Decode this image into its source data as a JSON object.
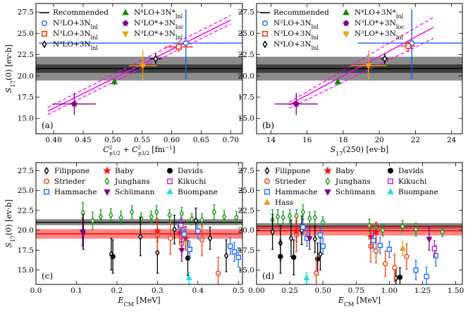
{
  "colors": {
    "band_a": "#000000",
    "band_c_dark": "#222222",
    "band_c_red": "#ff2020",
    "fit_line": "#ff00ff",
    "n2lo": "#1e5cff",
    "n3lo": "#ff2a00",
    "n4lo": "#000000",
    "n4lo_star": "#0f8a0f",
    "n3lo_loc": "#8b008b",
    "n3lo_star_lnl": "#f2a000",
    "filippone": "#000000",
    "strieder": "#ff3a00",
    "hammache": "#1e6cff",
    "baby": "#ff1010",
    "junghans": "#179b17",
    "schumann": "#800080",
    "davids": "#000000",
    "kikuchi": "#c020c0",
    "buompane": "#20e0e0",
    "hass": "#e0a020"
  },
  "ylabel_sym": "S",
  "ylabel_sub": "17",
  "ylabel_rest": "(0) [ev·b]",
  "chart_data": [
    {
      "panel": "(a)",
      "type": "scatter",
      "xlabel": "C²p1/2 + C²p3/2 [fm⁻¹]",
      "xlim": [
        0.37,
        0.72
      ],
      "ylim": [
        13.2,
        28.5
      ],
      "xticks": [
        0.4,
        0.45,
        0.5,
        0.55,
        0.6,
        0.65,
        0.7
      ],
      "yticks": [
        15.0,
        17.5,
        20.0,
        22.5,
        25.0,
        27.5
      ],
      "band": {
        "center": 20.85,
        "inner": [
          20.35,
          21.35
        ],
        "outer": [
          19.45,
          22.25
        ]
      },
      "fit_line": {
        "x": [
          0.39,
          0.7
        ],
        "y": [
          15.85,
          26.55
        ],
        "upper_y": [
          16.3,
          27.1
        ],
        "lower_y": [
          15.45,
          26.1
        ]
      },
      "legend": [
        "Recommended",
        "N²LO+3N_lnl",
        "N³LO+3N_lnl",
        "N⁴LO+3N_lnl",
        "N⁴LO+3N*_lnl",
        "N³LO*+3N_loc",
        "N³LO*+3N_lnl"
      ],
      "points": [
        {
          "series": "N²LO+3N_lnl",
          "x": 0.624,
          "y": 23.85,
          "xerr": [
            0.375,
            0.72
          ],
          "yerr": [
            19.6,
            27.8
          ]
        },
        {
          "series": "N³LO+3N_lnl",
          "x": 0.612,
          "y": 23.4,
          "xerr": [
            0.588,
            0.636
          ],
          "yerr": [
            22.8,
            24.0
          ]
        },
        {
          "series": "N⁴LO+3N_lnl",
          "x": 0.573,
          "y": 22.0,
          "xerr": [
            0.563,
            0.583
          ],
          "yerr": [
            21.4,
            22.6
          ]
        },
        {
          "series": "N⁴LO+3N*_lnl",
          "x": 0.503,
          "y": 19.3,
          "xerr": [
            0.5,
            0.506
          ],
          "yerr": [
            18.9,
            19.7
          ]
        },
        {
          "series": "N³LO*+3N_loc",
          "x": 0.435,
          "y": 16.7,
          "xerr": [
            0.398,
            0.472
          ],
          "yerr": [
            15.4,
            18.0
          ]
        },
        {
          "series": "N³LO*+3N_lnl",
          "x": 0.551,
          "y": 21.2,
          "xerr": [
            0.528,
            0.575
          ],
          "yerr": [
            19.4,
            23.0
          ]
        }
      ]
    },
    {
      "panel": "(b)",
      "type": "scatter",
      "xlabel": "S17(250) [ev·b]",
      "xlim": [
        13.2,
        24.6
      ],
      "ylim": [
        13.2,
        28.5
      ],
      "xticks": [
        14,
        16,
        18,
        20,
        22,
        24
      ],
      "yticks": [
        15.0,
        17.5,
        20.0,
        22.5,
        25.0,
        27.5
      ],
      "band": {
        "center": 20.85,
        "inner": [
          20.35,
          21.35
        ],
        "outer": [
          19.45,
          22.25
        ]
      },
      "fit_line": {
        "x": [
          15.0,
          23.0
        ],
        "y": [
          16.6,
          25.7
        ],
        "upper_y": [
          16.9,
          26.9
        ],
        "lower_y": [
          16.2,
          24.4
        ]
      },
      "legend": [
        "Recommended",
        "N²LO+3N_lnl",
        "N³LO+3N_lnl",
        "N⁴LO+3N_lnl",
        "N⁴LO+3N*_lnl",
        "N³LO*+3N_loc",
        "N³LO*+3N_lnl"
      ],
      "points": [
        {
          "series": "N²LO+3N_lnl",
          "x": 21.8,
          "y": 23.85,
          "xerr": [
            18.8,
            24.6
          ],
          "yerr": [
            19.6,
            27.8
          ]
        },
        {
          "series": "N³LO+3N_lnl",
          "x": 21.6,
          "y": 23.5,
          "xerr": [
            21.2,
            22.0
          ],
          "yerr": [
            22.8,
            24.1
          ]
        },
        {
          "series": "N⁴LO+3N_lnl",
          "x": 20.3,
          "y": 22.0,
          "xerr": [
            20.1,
            20.5
          ],
          "yerr": [
            21.4,
            22.6
          ]
        },
        {
          "series": "N⁴LO+3N*_lnl",
          "x": 17.7,
          "y": 19.3,
          "xerr": [
            17.6,
            17.8
          ],
          "yerr": [
            18.9,
            19.7
          ]
        },
        {
          "series": "N³LO*+3N_loc",
          "x": 15.4,
          "y": 16.7,
          "xerr": [
            14.2,
            16.6
          ],
          "yerr": [
            15.4,
            18.0
          ]
        },
        {
          "series": "N³LO*+3N_lnl",
          "x": 19.4,
          "y": 21.2,
          "xerr": [
            18.4,
            20.4
          ],
          "yerr": [
            19.4,
            23.0
          ]
        }
      ]
    },
    {
      "panel": "(c)",
      "type": "scatter",
      "xlabel": "E_CM [MeV]",
      "xlim": [
        0.0,
        0.51
      ],
      "ylim": [
        13.2,
        28.5
      ],
      "xticks": [
        0.0,
        0.1,
        0.2,
        0.3,
        0.4,
        0.5
      ],
      "yticks": [
        15.0,
        17.5,
        20.0,
        22.5,
        25.0,
        27.5
      ],
      "band_dark": {
        "center": 21.0,
        "range": [
          20.65,
          21.4
        ]
      },
      "band_red": {
        "center": 19.55,
        "range": [
          18.95,
          20.15
        ]
      },
      "legend": [
        "Filippone",
        "Strieder",
        "Hammache",
        "Baby",
        "Junghans",
        "Schümann",
        "Davids",
        "Kikuchi",
        "Buompane"
      ],
      "points": [
        {
          "series": "Junghans",
          "x": 0.116,
          "y": 22.2,
          "err": 1.3
        },
        {
          "series": "Junghans",
          "x": 0.14,
          "y": 21.2,
          "err": 1.1
        },
        {
          "series": "Junghans",
          "x": 0.16,
          "y": 21.7,
          "err": 0.9
        },
        {
          "series": "Junghans",
          "x": 0.185,
          "y": 21.9,
          "err": 0.8
        },
        {
          "series": "Junghans",
          "x": 0.21,
          "y": 21.6,
          "err": 0.8
        },
        {
          "series": "Junghans",
          "x": 0.237,
          "y": 22.3,
          "err": 0.8
        },
        {
          "series": "Junghans",
          "x": 0.26,
          "y": 21.5,
          "err": 0.7
        },
        {
          "series": "Junghans",
          "x": 0.285,
          "y": 21.7,
          "err": 0.7
        },
        {
          "series": "Junghans",
          "x": 0.298,
          "y": 22.3,
          "err": 0.8
        },
        {
          "series": "Junghans",
          "x": 0.33,
          "y": 21.9,
          "err": 0.7
        },
        {
          "series": "Junghans",
          "x": 0.36,
          "y": 22.1,
          "err": 0.8
        },
        {
          "series": "Junghans",
          "x": 0.385,
          "y": 21.4,
          "err": 0.7
        },
        {
          "series": "Junghans",
          "x": 0.41,
          "y": 21.3,
          "err": 0.8
        },
        {
          "series": "Junghans",
          "x": 0.44,
          "y": 22.3,
          "err": 0.9
        },
        {
          "series": "Junghans",
          "x": 0.465,
          "y": 21.7,
          "err": 0.8
        },
        {
          "series": "Junghans",
          "x": 0.495,
          "y": 21.6,
          "err": 0.8
        },
        {
          "series": "Filippone",
          "x": 0.117,
          "y": 19.8,
          "err": 2.2
        },
        {
          "series": "Filippone",
          "x": 0.186,
          "y": 17.0,
          "err": 2.0
        },
        {
          "series": "Filippone",
          "x": 0.258,
          "y": 19.2,
          "err": 2.4
        },
        {
          "series": "Filippone",
          "x": 0.3,
          "y": 17.2,
          "err": 2.6
        },
        {
          "series": "Filippone",
          "x": 0.342,
          "y": 20.1,
          "err": 1.8
        },
        {
          "series": "Filippone",
          "x": 0.395,
          "y": 21.2,
          "err": 1.6
        },
        {
          "series": "Filippone",
          "x": 0.43,
          "y": 19.0,
          "err": 1.4
        },
        {
          "series": "Filippone",
          "x": 0.47,
          "y": 16.8,
          "err": 2.0
        },
        {
          "series": "Davids",
          "x": 0.19,
          "y": 16.7,
          "err": 2.1
        },
        {
          "series": "Davids",
          "x": 0.375,
          "y": 16.5,
          "err": 2.2
        },
        {
          "series": "Strieder",
          "x": 0.3,
          "y": 19.4,
          "err": 2.1
        },
        {
          "series": "Strieder",
          "x": 0.332,
          "y": 19.0,
          "err": 2.0
        },
        {
          "series": "Strieder",
          "x": 0.36,
          "y": 18.3,
          "err": 1.5
        },
        {
          "series": "Strieder",
          "x": 0.41,
          "y": 18.8,
          "err": 2.0
        },
        {
          "series": "Strieder",
          "x": 0.45,
          "y": 14.6,
          "err": 2.0
        },
        {
          "series": "Baby",
          "x": 0.3,
          "y": 19.9,
          "err": 1.3
        },
        {
          "series": "Baby",
          "x": 0.355,
          "y": 19.7,
          "err": 1.2
        },
        {
          "series": "Baby",
          "x": 0.37,
          "y": 19.0,
          "err": 1.5
        },
        {
          "series": "Hammache",
          "x": 0.356,
          "y": 20.4,
          "err": 0.9
        },
        {
          "series": "Hammache",
          "x": 0.366,
          "y": 19.5,
          "err": 0.9
        },
        {
          "series": "Hammache",
          "x": 0.38,
          "y": 17.6,
          "err": 1.0
        },
        {
          "series": "Hammache",
          "x": 0.4,
          "y": 19.9,
          "err": 1.0
        },
        {
          "series": "Hammache",
          "x": 0.48,
          "y": 18.0,
          "err": 1.0
        },
        {
          "series": "Hammache",
          "x": 0.49,
          "y": 17.3,
          "err": 1.2
        },
        {
          "series": "Hammache",
          "x": 0.5,
          "y": 16.6,
          "err": 1.2
        },
        {
          "series": "Schümann",
          "x": 0.115,
          "y": 19.8,
          "err": 1.8
        },
        {
          "series": "Schümann",
          "x": 0.36,
          "y": 17.5,
          "err": 1.4
        },
        {
          "series": "Kikuchi",
          "x": 0.358,
          "y": 20.6,
          "err": 1.0
        },
        {
          "series": "Buompane",
          "x": 0.378,
          "y": 14.0,
          "err": 0.7
        }
      ]
    },
    {
      "panel": "(d)",
      "type": "scatter",
      "xlabel": "E_CM [MeV]",
      "xlim": [
        0.0,
        1.55
      ],
      "ylim": [
        13.2,
        28.5
      ],
      "xticks": [
        0.0,
        0.25,
        0.5,
        0.75,
        1.0,
        1.25,
        1.5
      ],
      "yticks": [
        15.0,
        17.5,
        20.0,
        22.5,
        25.0,
        27.5
      ],
      "band_dark": {
        "center": 20.5,
        "range": [
          20.15,
          20.9
        ]
      },
      "band_red": {
        "center": 19.95,
        "range": [
          19.35,
          20.55
        ]
      },
      "legend": [
        "Filippone",
        "Strieder",
        "Hammache",
        "Hass",
        "Baby",
        "Junghans",
        "Schümann",
        "Davids",
        "Kikuchi",
        "Buompane"
      ],
      "points": [
        {
          "series": "Junghans",
          "x": 0.12,
          "y": 21.3,
          "err": 1.3
        },
        {
          "series": "Junghans",
          "x": 0.16,
          "y": 21.7,
          "err": 0.9
        },
        {
          "series": "Junghans",
          "x": 0.2,
          "y": 21.6,
          "err": 0.8
        },
        {
          "series": "Junghans",
          "x": 0.25,
          "y": 21.8,
          "err": 0.8
        },
        {
          "series": "Junghans",
          "x": 0.3,
          "y": 21.8,
          "err": 0.8
        },
        {
          "series": "Junghans",
          "x": 0.35,
          "y": 22.3,
          "err": 0.9
        },
        {
          "series": "Junghans",
          "x": 0.4,
          "y": 21.5,
          "err": 0.8
        },
        {
          "series": "Junghans",
          "x": 0.44,
          "y": 21.6,
          "err": 0.8
        },
        {
          "series": "Junghans",
          "x": 0.5,
          "y": 21.0,
          "err": 0.7
        },
        {
          "series": "Junghans",
          "x": 0.85,
          "y": 20.6,
          "err": 0.8
        },
        {
          "series": "Junghans",
          "x": 0.9,
          "y": 20.3,
          "err": 0.7
        },
        {
          "series": "Junghans",
          "x": 0.95,
          "y": 20.0,
          "err": 0.7
        },
        {
          "series": "Junghans",
          "x": 1.1,
          "y": 20.5,
          "err": 0.7
        },
        {
          "series": "Junghans",
          "x": 1.2,
          "y": 20.1,
          "err": 0.8
        },
        {
          "series": "Junghans",
          "x": 1.4,
          "y": 19.8,
          "err": 0.6
        },
        {
          "series": "Filippone",
          "x": 0.12,
          "y": 19.8,
          "err": 2.2
        },
        {
          "series": "Filippone",
          "x": 0.18,
          "y": 18.4,
          "err": 2.2
        },
        {
          "series": "Filippone",
          "x": 0.26,
          "y": 19.0,
          "err": 2.3
        },
        {
          "series": "Filippone",
          "x": 0.34,
          "y": 20.0,
          "err": 1.8
        },
        {
          "series": "Filippone",
          "x": 0.44,
          "y": 18.9,
          "err": 1.7
        },
        {
          "series": "Filippone",
          "x": 0.48,
          "y": 17.0,
          "err": 2.0
        },
        {
          "series": "Filippone",
          "x": 1.05,
          "y": 14.0,
          "err": 1.4
        },
        {
          "series": "Davids",
          "x": 0.18,
          "y": 16.7,
          "err": 2.1
        },
        {
          "series": "Davids",
          "x": 0.28,
          "y": 16.6,
          "err": 2.2
        },
        {
          "series": "Davids",
          "x": 0.46,
          "y": 16.4,
          "err": 2.0
        },
        {
          "series": "Davids",
          "x": 1.08,
          "y": 14.1,
          "err": 1.2
        },
        {
          "series": "Strieder",
          "x": 0.3,
          "y": 19.4,
          "err": 2.1
        },
        {
          "series": "Strieder",
          "x": 0.45,
          "y": 14.6,
          "err": 2.0
        },
        {
          "series": "Strieder",
          "x": 0.86,
          "y": 18.0,
          "err": 2.0
        },
        {
          "series": "Strieder",
          "x": 0.9,
          "y": 17.4,
          "err": 1.5
        },
        {
          "series": "Strieder",
          "x": 0.97,
          "y": 15.8,
          "err": 1.6
        },
        {
          "series": "Strieder",
          "x": 1.04,
          "y": 15.3,
          "err": 1.7
        },
        {
          "series": "Strieder",
          "x": 1.13,
          "y": 16.7,
          "err": 1.6
        },
        {
          "series": "Baby",
          "x": 0.3,
          "y": 19.9,
          "err": 1.3
        },
        {
          "series": "Baby",
          "x": 0.86,
          "y": 19.2,
          "err": 1.4
        },
        {
          "series": "Baby",
          "x": 0.9,
          "y": 19.8,
          "err": 1.2
        },
        {
          "series": "Hammache",
          "x": 0.35,
          "y": 20.4,
          "err": 0.9
        },
        {
          "series": "Hammache",
          "x": 0.38,
          "y": 19.0,
          "err": 1.0
        },
        {
          "series": "Hammache",
          "x": 0.48,
          "y": 19.4,
          "err": 1.0
        },
        {
          "series": "Hammache",
          "x": 0.5,
          "y": 18.0,
          "err": 1.0
        },
        {
          "series": "Hammache",
          "x": 0.88,
          "y": 18.7,
          "err": 1.0
        },
        {
          "series": "Hammache",
          "x": 0.93,
          "y": 18.1,
          "err": 1.0
        },
        {
          "series": "Hammache",
          "x": 1.0,
          "y": 17.6,
          "err": 1.0
        },
        {
          "series": "Hammache",
          "x": 1.2,
          "y": 15.0,
          "err": 1.2
        },
        {
          "series": "Hammache",
          "x": 1.28,
          "y": 14.2,
          "err": 1.2
        },
        {
          "series": "Hammache",
          "x": 1.35,
          "y": 16.8,
          "err": 1.3
        },
        {
          "series": "Schümann",
          "x": 0.4,
          "y": 19.0,
          "err": 1.4
        },
        {
          "series": "Schümann",
          "x": 1.3,
          "y": 18.9,
          "err": 1.4
        },
        {
          "series": "Kikuchi",
          "x": 1.34,
          "y": 17.7,
          "err": 1.0
        },
        {
          "series": "Buompane",
          "x": 0.376,
          "y": 14.0,
          "err": 0.7
        },
        {
          "series": "Hass",
          "x": 1.1,
          "y": 17.7,
          "err": 0.9
        }
      ]
    }
  ]
}
